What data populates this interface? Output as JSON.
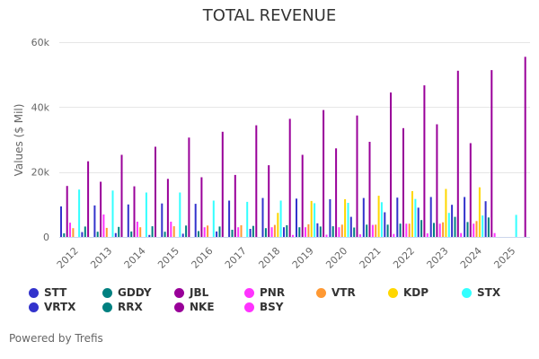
{
  "chart_data": {
    "type": "bar",
    "title": "TOTAL REVENUE",
    "xlabel": "",
    "ylabel": "Values ($ Mil)",
    "ylim": [
      0,
      60000
    ],
    "yticks": [
      0,
      20000,
      40000,
      60000
    ],
    "ytick_labels": [
      "0",
      "20k",
      "40k",
      "60k"
    ],
    "grid": true,
    "legend_position": "bottom",
    "categories": [
      "2012",
      "2013",
      "2014",
      "2015",
      "2016",
      "2017",
      "2018",
      "2019",
      "2020",
      "2021",
      "2022",
      "2023",
      "2024",
      "2025"
    ],
    "series": [
      {
        "name": "STT",
        "color": "#3333cc",
        "values": [
          9400,
          9700,
          10000,
          10300,
          10200,
          11200,
          12000,
          11800,
          11600,
          12000,
          12100,
          12300,
          12300,
          null
        ]
      },
      {
        "name": "GDDY",
        "color": "#008080",
        "values": [
          1100,
          1600,
          1700,
          1600,
          1800,
          2200,
          2700,
          3000,
          3300,
          3800,
          4100,
          4300,
          4600,
          null
        ]
      },
      {
        "name": "JBL",
        "color": "#990099",
        "values": [
          15700,
          17000,
          15600,
          17900,
          18400,
          19100,
          22100,
          25300,
          27300,
          29300,
          33500,
          34700,
          28900,
          null
        ]
      },
      {
        "name": "PNR",
        "color": "#ff33ff",
        "values": [
          4400,
          6900,
          4700,
          4700,
          3000,
          3000,
          3000,
          3000,
          3000,
          3700,
          4100,
          4100,
          4100,
          null
        ]
      },
      {
        "name": "VTR",
        "color": "#ff9933",
        "values": [
          2700,
          2800,
          3000,
          3300,
          3500,
          3600,
          3700,
          3900,
          3800,
          3800,
          4100,
          4500,
          4900,
          null
        ]
      },
      {
        "name": "KDP",
        "color": "#ffd700",
        "values": [
          null,
          null,
          null,
          null,
          null,
          null,
          7400,
          11100,
          11600,
          12700,
          14100,
          14800,
          15300,
          null
        ]
      },
      {
        "name": "STX",
        "color": "#33ffff",
        "values": [
          14600,
          14300,
          13700,
          13700,
          11200,
          10800,
          11200,
          10400,
          10500,
          10700,
          11700,
          7400,
          6600,
          6800
        ]
      },
      {
        "name": "VRTX",
        "color": "#3333cc",
        "values": [
          1500,
          1200,
          600,
          1000,
          1700,
          2500,
          3000,
          4200,
          6200,
          7600,
          9000,
          9900,
          11000,
          null
        ]
      },
      {
        "name": "RRX",
        "color": "#008080",
        "values": [
          3200,
          3100,
          3300,
          3500,
          3200,
          3400,
          3600,
          3200,
          2900,
          3800,
          5200,
          6200,
          6000,
          null
        ]
      },
      {
        "name": "NKE",
        "color": "#990099",
        "values": [
          23300,
          25300,
          27800,
          30600,
          32400,
          34400,
          36400,
          39100,
          37400,
          44500,
          46700,
          51200,
          51400,
          55500
        ]
      },
      {
        "name": "BSY",
        "color": "#ff33ff",
        "values": [
          null,
          null,
          null,
          null,
          null,
          null,
          600,
          700,
          800,
          900,
          1100,
          1200,
          1200,
          null
        ]
      }
    ]
  },
  "legend": [
    {
      "label": "STT",
      "color": "#3333cc"
    },
    {
      "label": "GDDY",
      "color": "#008080"
    },
    {
      "label": "JBL",
      "color": "#990099"
    },
    {
      "label": "PNR",
      "color": "#ff33ff"
    },
    {
      "label": "VTR",
      "color": "#ff9933"
    },
    {
      "label": "KDP",
      "color": "#ffd700"
    },
    {
      "label": "STX",
      "color": "#33ffff"
    },
    {
      "label": "VRTX",
      "color": "#3333cc"
    },
    {
      "label": "RRX",
      "color": "#008080"
    },
    {
      "label": "NKE",
      "color": "#990099"
    },
    {
      "label": "BSY",
      "color": "#ff33ff"
    }
  ],
  "footer": {
    "credit": "Powered by Trefis"
  }
}
